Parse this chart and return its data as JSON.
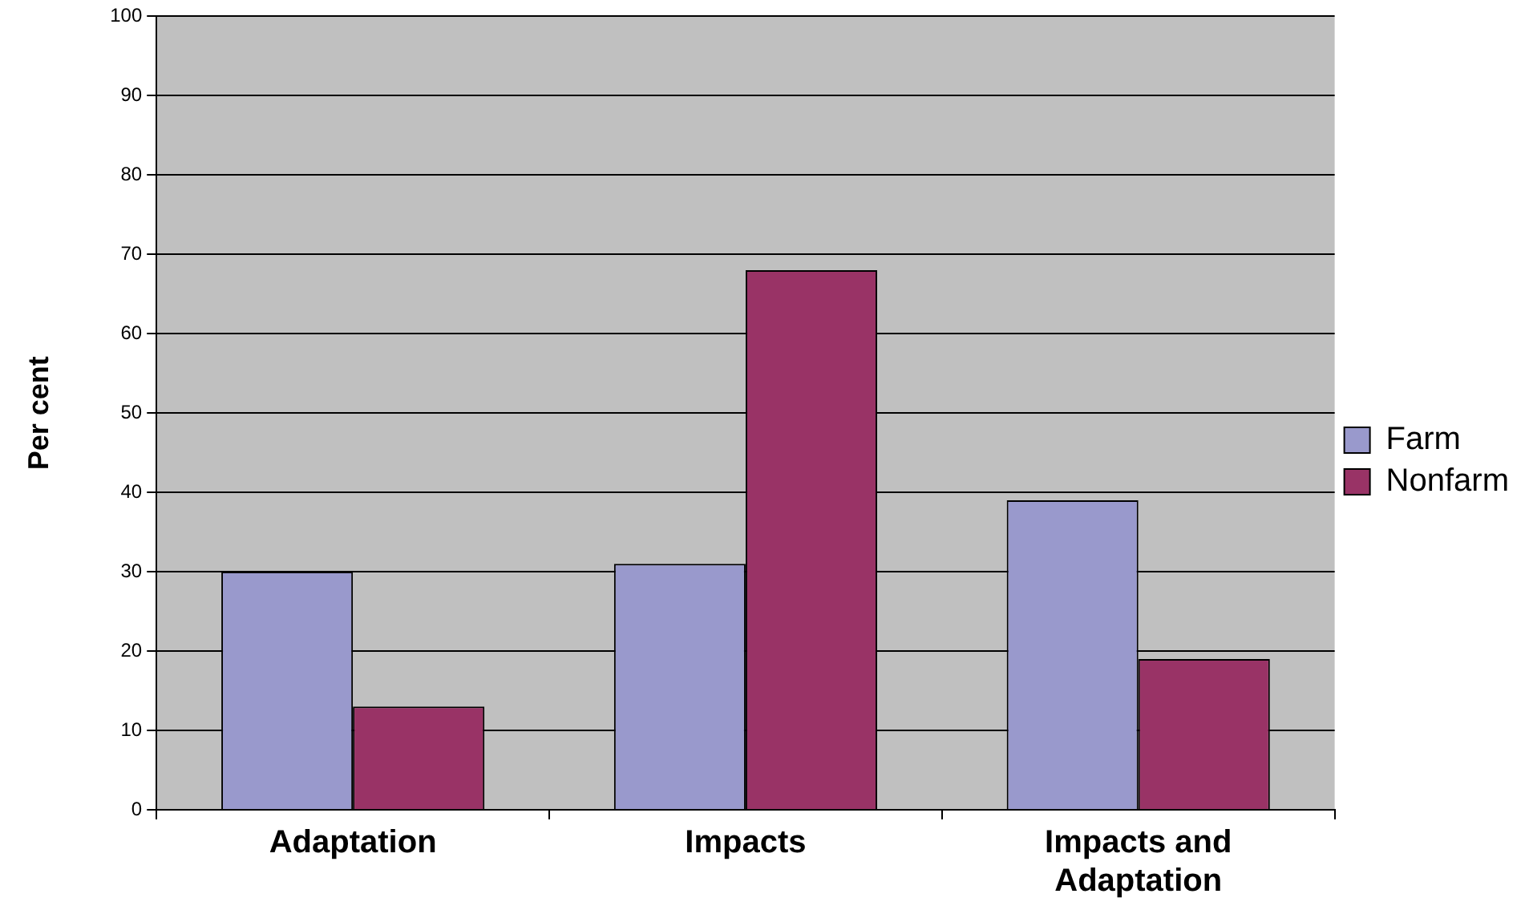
{
  "chart_data": {
    "type": "bar",
    "ylabel": "Per cent",
    "categories": [
      "Adaptation",
      "Impacts",
      "Impacts and Adaptation"
    ],
    "series": [
      {
        "name": "Farm",
        "color": "#9999cc",
        "values": [
          30,
          31,
          39
        ]
      },
      {
        "name": "Nonfarm",
        "color": "#993366",
        "values": [
          13,
          68,
          19
        ]
      }
    ],
    "ylim": [
      0,
      100
    ],
    "yticks": [
      0,
      10,
      20,
      30,
      40,
      50,
      60,
      70,
      80,
      90,
      100
    ],
    "grid": "y",
    "legend": "right"
  }
}
